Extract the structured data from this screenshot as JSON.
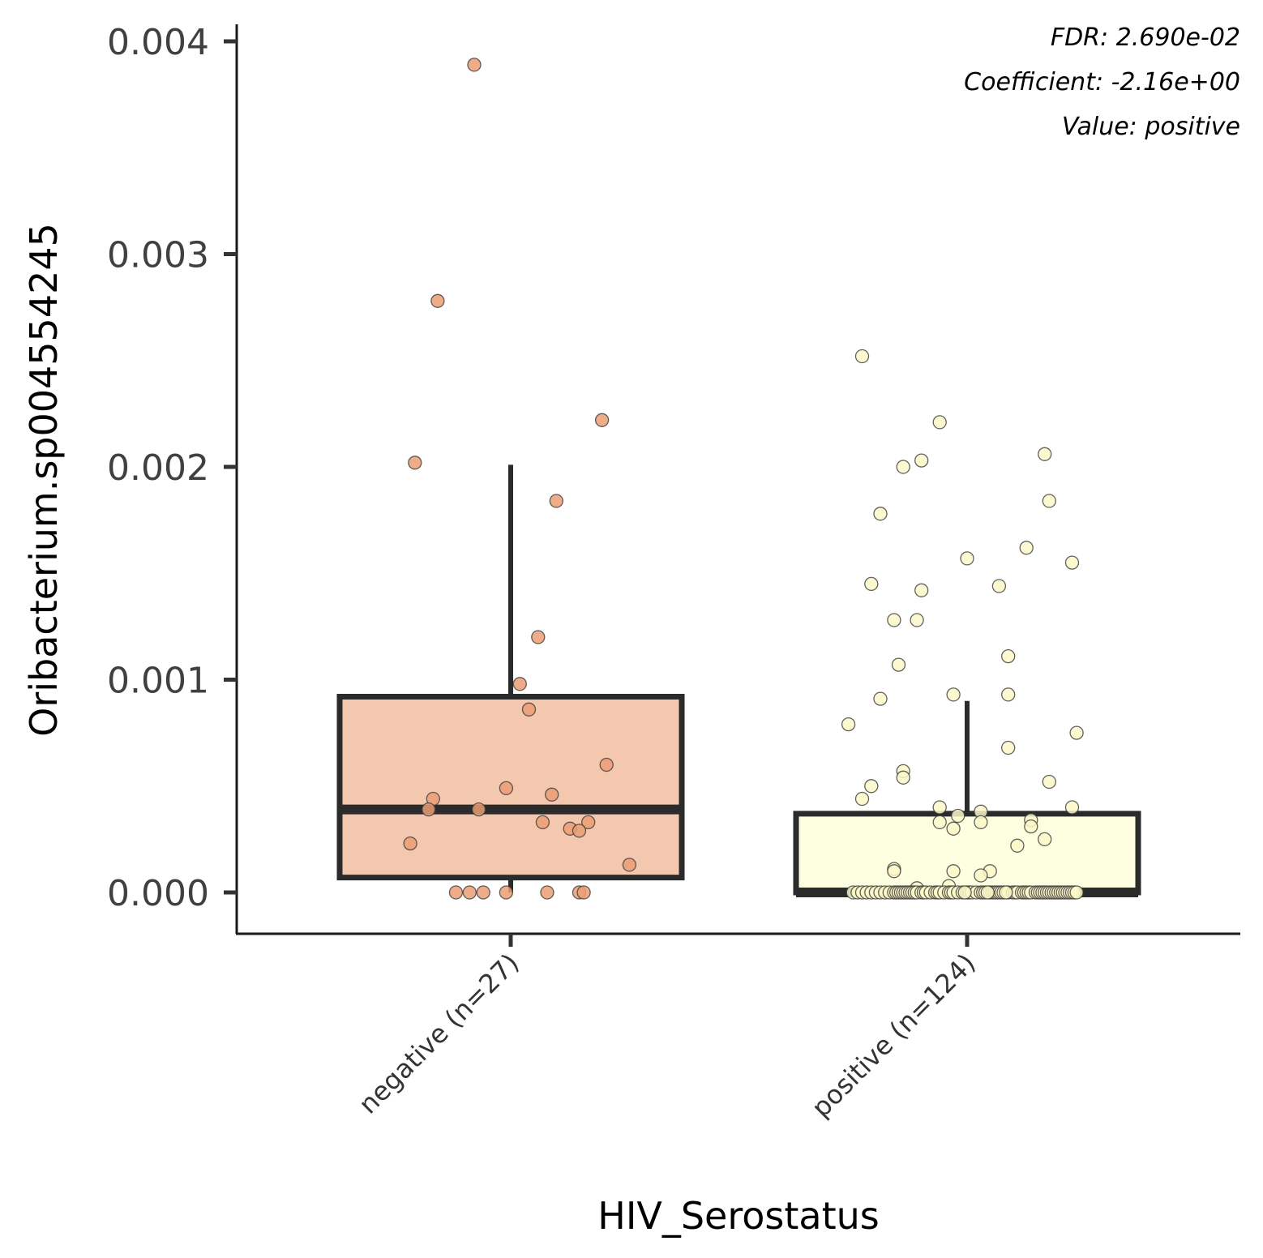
{
  "chart_data": {
    "type": "box",
    "title": "",
    "xlabel": "HIV_Serostatus",
    "ylabel": "Oribacterium.sp0045542​45",
    "ylim": [
      -0.0002,
      0.00405
    ],
    "yticks": [
      0.0,
      0.001,
      0.002,
      0.003,
      0.004
    ],
    "ytick_labels": [
      "0.000",
      "0.001",
      "0.002",
      "0.003",
      "0.004"
    ],
    "grid": false,
    "categories": [
      "negative (n=27)",
      "positive (n=124)"
    ],
    "annotations": [
      "FDR: 2.690e-02",
      "Coefficient: -2.16e+00",
      "Value: positive"
    ],
    "colors": {
      "negative_box": "#f4c7af",
      "negative_point": "#eb9e74",
      "positive_box": "#fefee0",
      "positive_point": "#fbf8c8",
      "outline": "#2b2b2b"
    },
    "boxes": [
      {
        "category": "negative (n=27)",
        "whisker_low": 0.0,
        "q1": 7e-05,
        "median": 0.00039,
        "q3": 0.00092,
        "whisker_high": 0.00201
      },
      {
        "category": "positive (n=124)",
        "whisker_low": 0.0,
        "q1": 0.0,
        "median": 0.0,
        "q3": 0.00037,
        "whisker_high": 0.0009
      }
    ],
    "series": [
      {
        "name": "negative (n=27)",
        "points": [
          {
            "jitter": -0.08,
            "y": 0.00389
          },
          {
            "jitter": -0.16,
            "y": 0.00278
          },
          {
            "jitter": 0.2,
            "y": 0.00222
          },
          {
            "jitter": -0.21,
            "y": 0.00202
          },
          {
            "jitter": 0.1,
            "y": 0.00184
          },
          {
            "jitter": 0.06,
            "y": 0.0012
          },
          {
            "jitter": 0.02,
            "y": 0.00098
          },
          {
            "jitter": 0.04,
            "y": 0.00086
          },
          {
            "jitter": 0.21,
            "y": 0.0006
          },
          {
            "jitter": -0.01,
            "y": 0.00049
          },
          {
            "jitter": 0.09,
            "y": 0.00046
          },
          {
            "jitter": -0.17,
            "y": 0.00044
          },
          {
            "jitter": -0.18,
            "y": 0.00039
          },
          {
            "jitter": -0.07,
            "y": 0.00039
          },
          {
            "jitter": 0.07,
            "y": 0.00033
          },
          {
            "jitter": 0.17,
            "y": 0.00033
          },
          {
            "jitter": 0.13,
            "y": 0.0003
          },
          {
            "jitter": 0.15,
            "y": 0.00029
          },
          {
            "jitter": -0.22,
            "y": 0.00023
          },
          {
            "jitter": 0.26,
            "y": 0.00013
          },
          {
            "jitter": -0.12,
            "y": 0.0
          },
          {
            "jitter": -0.09,
            "y": 0.0
          },
          {
            "jitter": -0.06,
            "y": 0.0
          },
          {
            "jitter": -0.01,
            "y": 0.0
          },
          {
            "jitter": 0.08,
            "y": 0.0
          },
          {
            "jitter": 0.15,
            "y": 0.0
          },
          {
            "jitter": 0.16,
            "y": 0.0
          }
        ]
      },
      {
        "name": "positive (n=124)",
        "points": [
          {
            "jitter": -0.23,
            "y": 0.00252
          },
          {
            "jitter": -0.06,
            "y": 0.00221
          },
          {
            "jitter": 0.17,
            "y": 0.00206
          },
          {
            "jitter": -0.1,
            "y": 0.00203
          },
          {
            "jitter": -0.14,
            "y": 0.002
          },
          {
            "jitter": 0.18,
            "y": 0.00184
          },
          {
            "jitter": -0.19,
            "y": 0.00178
          },
          {
            "jitter": 0.13,
            "y": 0.00162
          },
          {
            "jitter": 0.0,
            "y": 0.00157
          },
          {
            "jitter": 0.23,
            "y": 0.00155
          },
          {
            "jitter": -0.21,
            "y": 0.00145
          },
          {
            "jitter": 0.07,
            "y": 0.00144
          },
          {
            "jitter": -0.1,
            "y": 0.00142
          },
          {
            "jitter": -0.16,
            "y": 0.00128
          },
          {
            "jitter": -0.11,
            "y": 0.00128
          },
          {
            "jitter": 0.09,
            "y": 0.00111
          },
          {
            "jitter": -0.15,
            "y": 0.00107
          },
          {
            "jitter": -0.03,
            "y": 0.00093
          },
          {
            "jitter": 0.09,
            "y": 0.00093
          },
          {
            "jitter": -0.19,
            "y": 0.00091
          },
          {
            "jitter": -0.26,
            "y": 0.00079
          },
          {
            "jitter": 0.24,
            "y": 0.00075
          },
          {
            "jitter": 0.09,
            "y": 0.00068
          },
          {
            "jitter": -0.14,
            "y": 0.00057
          },
          {
            "jitter": -0.14,
            "y": 0.00054
          },
          {
            "jitter": 0.18,
            "y": 0.00052
          },
          {
            "jitter": -0.21,
            "y": 0.0005
          },
          {
            "jitter": -0.23,
            "y": 0.00044
          },
          {
            "jitter": -0.06,
            "y": 0.0004
          },
          {
            "jitter": 0.23,
            "y": 0.0004
          },
          {
            "jitter": 0.03,
            "y": 0.00038
          },
          {
            "jitter": -0.02,
            "y": 0.00036
          },
          {
            "jitter": 0.14,
            "y": 0.00034
          },
          {
            "jitter": 0.03,
            "y": 0.00033
          },
          {
            "jitter": -0.06,
            "y": 0.00033
          },
          {
            "jitter": 0.14,
            "y": 0.00031
          },
          {
            "jitter": -0.03,
            "y": 0.0003
          },
          {
            "jitter": 0.17,
            "y": 0.00025
          },
          {
            "jitter": 0.11,
            "y": 0.00022
          },
          {
            "jitter": -0.16,
            "y": 0.00011
          },
          {
            "jitter": -0.16,
            "y": 0.0001
          },
          {
            "jitter": 0.05,
            "y": 0.0001
          },
          {
            "jitter": -0.03,
            "y": 0.0001
          },
          {
            "jitter": 0.03,
            "y": 8e-05
          },
          {
            "jitter": -0.04,
            "y": 3e-05
          },
          {
            "jitter": -0.11,
            "y": 2e-05
          },
          {
            "jitter": -0.25,
            "y": 0.0
          },
          {
            "jitter": -0.24,
            "y": 0.0
          },
          {
            "jitter": -0.23,
            "y": 0.0
          },
          {
            "jitter": -0.22,
            "y": 0.0
          },
          {
            "jitter": -0.21,
            "y": 0.0
          },
          {
            "jitter": -0.2,
            "y": 0.0
          },
          {
            "jitter": -0.19,
            "y": 0.0
          },
          {
            "jitter": -0.18,
            "y": 0.0
          },
          {
            "jitter": -0.17,
            "y": 0.0
          },
          {
            "jitter": -0.16,
            "y": 0.0
          },
          {
            "jitter": -0.155,
            "y": 0.0
          },
          {
            "jitter": -0.15,
            "y": 0.0
          },
          {
            "jitter": -0.145,
            "y": 0.0
          },
          {
            "jitter": -0.14,
            "y": 0.0
          },
          {
            "jitter": -0.135,
            "y": 0.0
          },
          {
            "jitter": -0.13,
            "y": 0.0
          },
          {
            "jitter": -0.125,
            "y": 0.0
          },
          {
            "jitter": -0.12,
            "y": 0.0
          },
          {
            "jitter": -0.115,
            "y": 0.0
          },
          {
            "jitter": -0.11,
            "y": 0.0
          },
          {
            "jitter": -0.1,
            "y": 0.0
          },
          {
            "jitter": -0.095,
            "y": 0.0
          },
          {
            "jitter": -0.09,
            "y": 0.0
          },
          {
            "jitter": -0.08,
            "y": 0.0
          },
          {
            "jitter": -0.07,
            "y": 0.0
          },
          {
            "jitter": -0.065,
            "y": 0.0
          },
          {
            "jitter": -0.06,
            "y": 0.0
          },
          {
            "jitter": -0.05,
            "y": 0.0
          },
          {
            "jitter": -0.04,
            "y": 0.0
          },
          {
            "jitter": -0.035,
            "y": 0.0
          },
          {
            "jitter": -0.03,
            "y": 0.0
          },
          {
            "jitter": -0.02,
            "y": 0.0
          },
          {
            "jitter": -0.01,
            "y": 0.0
          },
          {
            "jitter": 0.0,
            "y": 0.0
          },
          {
            "jitter": 0.005,
            "y": 0.0
          },
          {
            "jitter": 0.01,
            "y": 0.0
          },
          {
            "jitter": 0.02,
            "y": 0.0
          },
          {
            "jitter": 0.03,
            "y": 0.0
          },
          {
            "jitter": 0.035,
            "y": 0.0
          },
          {
            "jitter": 0.04,
            "y": 0.0
          },
          {
            "jitter": 0.05,
            "y": 0.0
          },
          {
            "jitter": 0.055,
            "y": 0.0
          },
          {
            "jitter": 0.06,
            "y": 0.0
          },
          {
            "jitter": 0.065,
            "y": 0.0
          },
          {
            "jitter": 0.07,
            "y": 0.0
          },
          {
            "jitter": 0.075,
            "y": 0.0
          },
          {
            "jitter": 0.08,
            "y": 0.0
          },
          {
            "jitter": 0.09,
            "y": 0.0
          },
          {
            "jitter": 0.1,
            "y": 0.0
          },
          {
            "jitter": 0.105,
            "y": 0.0
          },
          {
            "jitter": 0.11,
            "y": 0.0
          },
          {
            "jitter": 0.12,
            "y": 0.0
          },
          {
            "jitter": 0.125,
            "y": 0.0
          },
          {
            "jitter": 0.13,
            "y": 0.0
          },
          {
            "jitter": 0.135,
            "y": 0.0
          },
          {
            "jitter": 0.14,
            "y": 0.0
          },
          {
            "jitter": 0.15,
            "y": 0.0
          },
          {
            "jitter": 0.155,
            "y": 0.0
          },
          {
            "jitter": 0.16,
            "y": 0.0
          },
          {
            "jitter": 0.165,
            "y": 0.0
          },
          {
            "jitter": 0.17,
            "y": 0.0
          },
          {
            "jitter": 0.175,
            "y": 0.0
          },
          {
            "jitter": 0.18,
            "y": 0.0
          },
          {
            "jitter": 0.185,
            "y": 0.0
          },
          {
            "jitter": 0.19,
            "y": 0.0
          },
          {
            "jitter": 0.195,
            "y": 0.0
          },
          {
            "jitter": 0.2,
            "y": 0.0
          },
          {
            "jitter": 0.205,
            "y": 0.0
          },
          {
            "jitter": 0.21,
            "y": 0.0
          },
          {
            "jitter": 0.215,
            "y": 0.0
          },
          {
            "jitter": 0.22,
            "y": 0.0
          },
          {
            "jitter": 0.225,
            "y": 0.0
          },
          {
            "jitter": 0.23,
            "y": 0.0
          },
          {
            "jitter": 0.235,
            "y": 0.0
          },
          {
            "jitter": 0.24,
            "y": 0.0
          },
          {
            "jitter": -0.005,
            "y": 0.0
          },
          {
            "jitter": 0.045,
            "y": 0.0
          },
          {
            "jitter": 0.085,
            "y": 0.0
          }
        ]
      }
    ]
  }
}
